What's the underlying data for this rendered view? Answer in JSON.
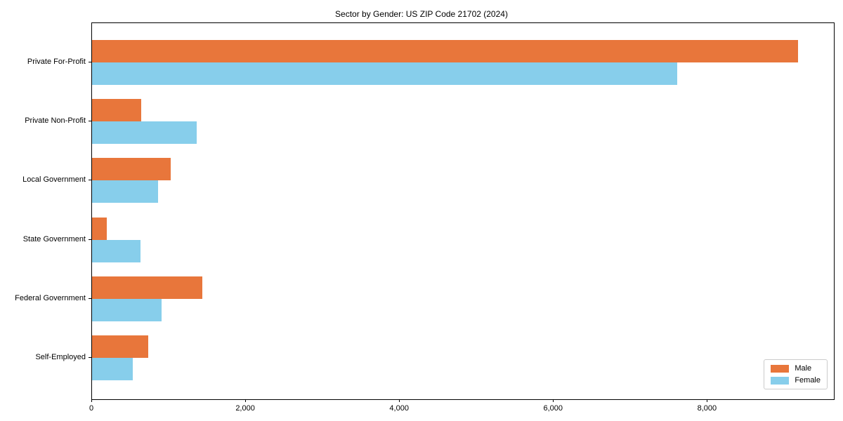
{
  "chart_data": {
    "type": "bar",
    "orientation": "horizontal",
    "title": "Sector by Gender: US ZIP Code 21702 (2024)",
    "categories": [
      "Private For-Profit",
      "Private Non-Profit",
      "Local Government",
      "State Government",
      "Federal Government",
      "Self-Employed"
    ],
    "series": [
      {
        "name": "Male",
        "color": "#e8763b",
        "values": [
          9170,
          640,
          1020,
          190,
          1430,
          730
        ]
      },
      {
        "name": "Female",
        "color": "#87ceeb",
        "values": [
          7600,
          1360,
          860,
          630,
          900,
          530
        ]
      }
    ],
    "xlabel": "",
    "ylabel": "",
    "xlim": [
      0,
      9640
    ],
    "xticks": [
      0,
      2000,
      4000,
      6000,
      8000
    ],
    "xtick_labels": [
      "0",
      "2,000",
      "4,000",
      "6,000",
      "8,000"
    ],
    "grid": false,
    "legend_position": "lower right",
    "background_color": "#ffffff",
    "spine_color": "#000000"
  }
}
